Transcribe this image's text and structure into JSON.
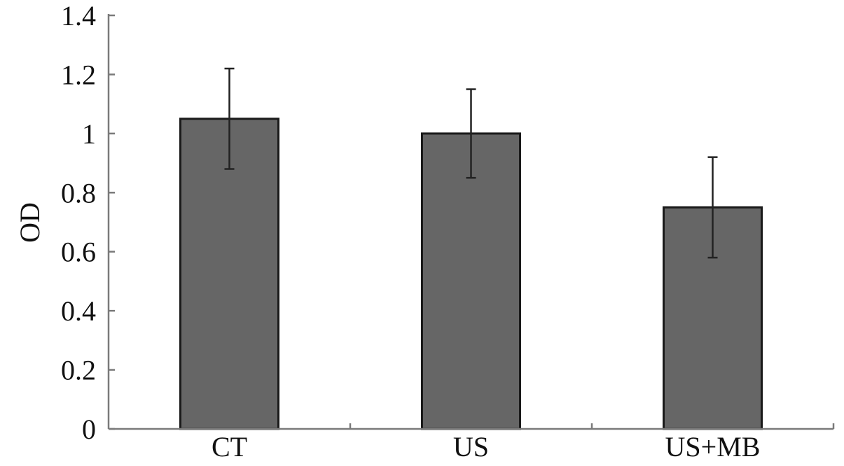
{
  "chart_data": {
    "type": "bar",
    "categories": [
      "CT",
      "US",
      "US+MB"
    ],
    "values": [
      1.05,
      1.0,
      0.75
    ],
    "error": [
      0.17,
      0.15,
      0.17
    ],
    "title": "",
    "xlabel": "",
    "ylabel": "OD",
    "ylim": [
      0,
      1.4
    ],
    "yticks": [
      "0",
      "0.2",
      "0.4",
      "0.6",
      "0.8",
      "1",
      "1.2",
      "1.4"
    ],
    "grid": false,
    "legend": "none",
    "colors": {
      "bar_fill": "#666666",
      "bar_stroke": "#1a1a1a",
      "axis": "#7a7a7a",
      "error_bar": "#222222"
    }
  }
}
